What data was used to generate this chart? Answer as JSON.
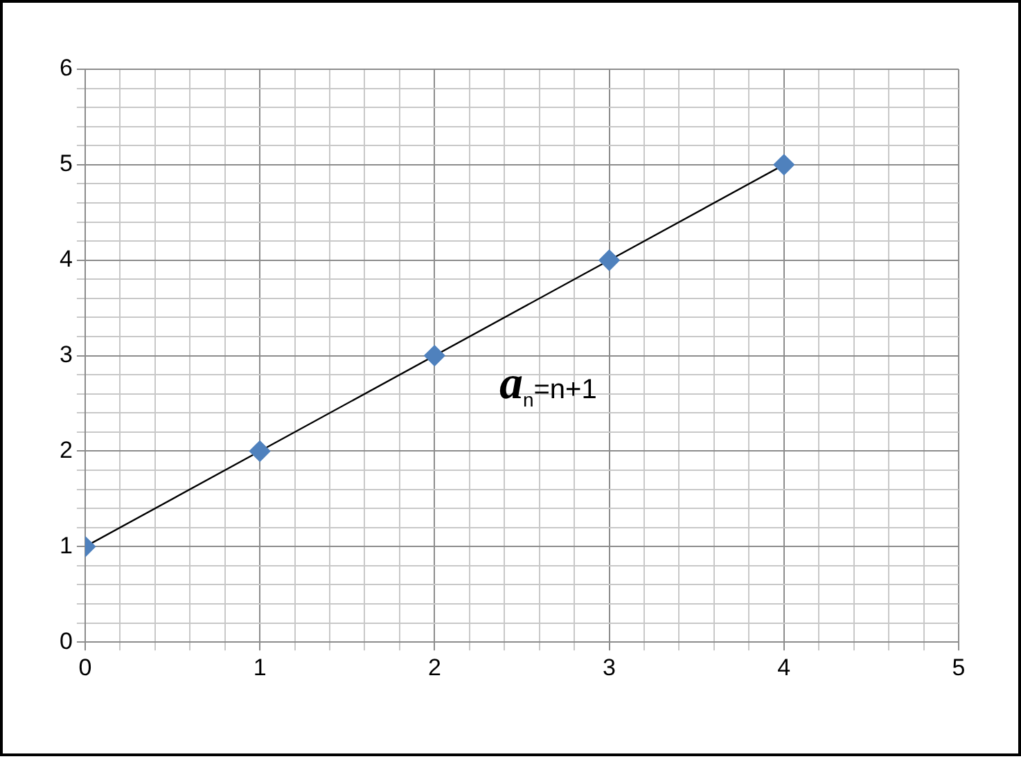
{
  "chart_data": {
    "type": "scatter",
    "marker": "diamond",
    "grid": true,
    "legend": false,
    "series": [
      {
        "type": "scatter",
        "color": "#4f81bd",
        "x": [
          0,
          1,
          2,
          3,
          4
        ],
        "values": [
          1,
          2,
          3,
          4,
          5
        ]
      },
      {
        "type": "line",
        "color": "#000000",
        "marker": "none",
        "x": [
          0,
          4
        ],
        "values": [
          1,
          5
        ]
      }
    ],
    "xlim": [
      0,
      5
    ],
    "xticks": [
      0,
      {
        "value": 0.2,
        "label": null
      },
      {
        "value": 0.4,
        "label": null
      },
      {
        "value": 0.6,
        "label": null
      },
      {
        "value": 0.8,
        "label": null
      },
      1,
      {
        "value": 1.2,
        "label": null
      },
      {
        "value": 1.4,
        "label": null
      },
      {
        "value": 1.6,
        "label": null
      },
      {
        "value": 1.8,
        "label": null
      },
      2,
      {
        "value": 2.2,
        "label": null
      },
      {
        "value": 2.4,
        "label": null
      },
      {
        "value": 2.6,
        "label": null
      },
      {
        "value": 2.8,
        "label": null
      },
      3,
      {
        "value": 3.2,
        "label": null
      },
      {
        "value": 3.4,
        "label": null
      },
      {
        "value": 3.6,
        "label": null
      },
      {
        "value": 3.8,
        "label": null
      },
      4,
      {
        "value": 4.2,
        "label": null
      },
      {
        "value": 4.4,
        "label": null
      },
      {
        "value": 4.6,
        "label": null
      },
      {
        "value": 4.8,
        "label": null
      },
      5
    ],
    "ylim": [
      0,
      6
    ],
    "yticks": [
      0,
      {
        "value": 0.2,
        "label": null
      },
      {
        "value": 0.4,
        "label": null
      },
      {
        "value": 0.6,
        "label": null
      },
      {
        "value": 0.8,
        "label": null
      },
      1,
      {
        "value": 1.2,
        "label": null
      },
      {
        "value": 1.4,
        "label": null
      },
      {
        "value": 1.6,
        "label": null
      },
      {
        "value": 1.8,
        "label": null
      },
      2,
      {
        "value": 2.2,
        "label": null
      },
      {
        "value": 2.4,
        "label": null
      },
      {
        "value": 2.6,
        "label": null
      },
      {
        "value": 2.8,
        "label": null
      },
      3,
      {
        "value": 3.2,
        "label": null
      },
      {
        "value": 3.4,
        "label": null
      },
      {
        "value": 3.6,
        "label": null
      },
      {
        "value": 3.8,
        "label": null
      },
      4,
      {
        "value": 4.2,
        "label": null
      },
      {
        "value": 4.4,
        "label": null
      },
      {
        "value": 4.6,
        "label": null
      },
      {
        "value": 4.8,
        "label": null
      },
      5,
      {
        "value": 5.2,
        "label": null
      },
      {
        "value": 5.4,
        "label": null
      },
      {
        "value": 5.6,
        "label": null
      },
      {
        "value": 5.8,
        "label": null
      },
      6
    ],
    "annotations": [
      "a$_{n}$=n+1"
    ]
  }
}
